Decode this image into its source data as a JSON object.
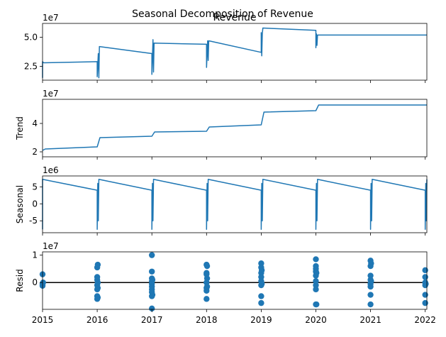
{
  "figure": {
    "suptitle": "Seasonal Decomposition of Revenue",
    "line_color": "#1f77b4",
    "x_ticks": [
      "2015",
      "2016",
      "2017",
      "2018",
      "2019",
      "2020",
      "2021",
      "2022"
    ]
  },
  "chart_data": [
    {
      "type": "line",
      "panel": "observed",
      "title": "Revenue",
      "ylabel": "",
      "offset_label": "1e7",
      "y_ticks": [
        "2.5",
        "5.0"
      ],
      "y_tick_values": [
        2.5,
        5.0
      ],
      "xlim": [
        2015,
        2022.03
      ],
      "ylim": [
        1.3,
        6.2
      ],
      "series": [
        {
          "points": [
            [
              2015.0,
              1.5
            ],
            [
              2015.0,
              2.9
            ],
            [
              2015.02,
              2.8
            ],
            [
              2016.0,
              2.9
            ],
            [
              2016.0,
              1.6
            ],
            [
              2016.02,
              3.6
            ],
            [
              2016.03,
              1.5
            ],
            [
              2016.04,
              4.2
            ],
            [
              2017.0,
              3.6
            ],
            [
              2017.0,
              1.8
            ],
            [
              2017.02,
              4.8
            ],
            [
              2017.03,
              2.0
            ],
            [
              2017.04,
              4.5
            ],
            [
              2018.0,
              4.4
            ],
            [
              2018.0,
              2.4
            ],
            [
              2018.02,
              4.7
            ],
            [
              2018.03,
              3.0
            ],
            [
              2018.04,
              4.7
            ],
            [
              2019.0,
              3.7
            ],
            [
              2019.0,
              5.4
            ],
            [
              2019.01,
              3.4
            ],
            [
              2019.02,
              5.3
            ],
            [
              2019.03,
              5.8
            ],
            [
              2020.0,
              5.6
            ],
            [
              2020.0,
              4.1
            ],
            [
              2020.01,
              5.3
            ],
            [
              2020.02,
              4.3
            ],
            [
              2020.03,
              5.2
            ],
            [
              2022.03,
              5.2
            ]
          ]
        }
      ]
    },
    {
      "type": "line",
      "panel": "trend",
      "title": "",
      "ylabel": "Trend",
      "offset_label": "1e7",
      "y_ticks": [
        "2",
        "4"
      ],
      "y_tick_values": [
        2,
        4
      ],
      "xlim": [
        2015,
        2022.03
      ],
      "ylim": [
        1.65,
        5.7
      ],
      "series": [
        {
          "points": [
            [
              2015.0,
              2.1
            ],
            [
              2015.05,
              2.2
            ],
            [
              2016.0,
              2.35
            ],
            [
              2016.05,
              3.0
            ],
            [
              2017.0,
              3.1
            ],
            [
              2017.05,
              3.4
            ],
            [
              2018.0,
              3.45
            ],
            [
              2018.05,
              3.75
            ],
            [
              2019.0,
              3.9
            ],
            [
              2019.05,
              4.8
            ],
            [
              2020.0,
              4.9
            ],
            [
              2020.05,
              5.3
            ],
            [
              2022.03,
              5.3
            ]
          ]
        }
      ]
    },
    {
      "type": "line",
      "panel": "seasonal",
      "title": "",
      "ylabel": "Seasonal",
      "offset_label": "1e6",
      "y_ticks": [
        "-5",
        "0",
        "5"
      ],
      "y_tick_values": [
        -5,
        0,
        5
      ],
      "xlim": [
        2015,
        2022.03
      ],
      "ylim": [
        -8.5,
        8.2
      ],
      "series": [
        {
          "points": [
            [
              2015.0,
              -7.5
            ],
            [
              2015.0,
              7.2
            ],
            [
              2016.0,
              4.0
            ],
            [
              2016.0,
              -7.5
            ],
            [
              2016.01,
              6.0
            ],
            [
              2016.02,
              -5.0
            ],
            [
              2016.03,
              7.2
            ],
            [
              2017.0,
              4.0
            ],
            [
              2017.0,
              -7.5
            ],
            [
              2017.01,
              6.0
            ],
            [
              2017.02,
              -5.0
            ],
            [
              2017.03,
              7.2
            ],
            [
              2018.0,
              4.0
            ],
            [
              2018.0,
              -7.5
            ],
            [
              2018.01,
              6.0
            ],
            [
              2018.02,
              -5.0
            ],
            [
              2018.03,
              7.2
            ],
            [
              2019.0,
              4.0
            ],
            [
              2019.0,
              -7.5
            ],
            [
              2019.01,
              6.0
            ],
            [
              2019.02,
              -5.0
            ],
            [
              2019.03,
              7.2
            ],
            [
              2020.0,
              4.0
            ],
            [
              2020.0,
              -7.5
            ],
            [
              2020.01,
              6.0
            ],
            [
              2020.02,
              -5.0
            ],
            [
              2020.03,
              7.2
            ],
            [
              2021.0,
              4.0
            ],
            [
              2021.0,
              -7.5
            ],
            [
              2021.01,
              6.0
            ],
            [
              2021.02,
              -5.0
            ],
            [
              2021.03,
              7.2
            ],
            [
              2022.0,
              4.0
            ],
            [
              2022.0,
              -7.5
            ],
            [
              2022.01,
              6.0
            ],
            [
              2022.02,
              -5.0
            ],
            [
              2022.03,
              7.2
            ]
          ]
        }
      ]
    },
    {
      "type": "scatter",
      "panel": "residual",
      "title": "",
      "ylabel": "Resid",
      "offset_label": "1e7",
      "y_ticks": [
        "0",
        "1"
      ],
      "y_tick_values": [
        0,
        1
      ],
      "xlim": [
        2015,
        2022.03
      ],
      "ylim": [
        -0.98,
        1.12
      ],
      "zero_line": 0,
      "series": [
        {
          "points": [
            [
              2015.0,
              0.3
            ],
            [
              2015.0,
              -0.05
            ],
            [
              2015.0,
              -0.1
            ],
            [
              2015.0,
              -0.12
            ],
            [
              2015.01,
              0.0
            ],
            [
              2016.0,
              0.55
            ],
            [
              2016.0,
              0.2
            ],
            [
              2016.0,
              0.1
            ],
            [
              2016.0,
              -0.1
            ],
            [
              2016.0,
              -0.25
            ],
            [
              2016.0,
              -0.5
            ],
            [
              2016.0,
              -0.6
            ],
            [
              2016.01,
              0.65
            ],
            [
              2016.01,
              0.0
            ],
            [
              2016.01,
              -0.2
            ],
            [
              2016.01,
              -0.55
            ],
            [
              2017.0,
              1.0
            ],
            [
              2017.0,
              0.4
            ],
            [
              2017.0,
              0.15
            ],
            [
              2017.0,
              0.05
            ],
            [
              2017.0,
              -0.05
            ],
            [
              2017.0,
              -0.15
            ],
            [
              2017.0,
              -0.25
            ],
            [
              2017.0,
              -0.35
            ],
            [
              2017.0,
              -0.5
            ],
            [
              2017.0,
              -0.95
            ],
            [
              2017.01,
              0.1
            ],
            [
              2017.01,
              -0.45
            ],
            [
              2018.0,
              0.65
            ],
            [
              2018.0,
              0.35
            ],
            [
              2018.0,
              0.3
            ],
            [
              2018.0,
              0.0
            ],
            [
              2018.0,
              -0.2
            ],
            [
              2018.0,
              -0.3
            ],
            [
              2018.0,
              -0.6
            ],
            [
              2018.01,
              0.6
            ],
            [
              2018.01,
              0.15
            ],
            [
              2018.01,
              -0.15
            ],
            [
              2019.0,
              0.7
            ],
            [
              2019.0,
              0.55
            ],
            [
              2019.0,
              0.35
            ],
            [
              2019.0,
              0.2
            ],
            [
              2019.0,
              0.05
            ],
            [
              2019.0,
              -0.1
            ],
            [
              2019.0,
              -0.5
            ],
            [
              2019.0,
              -0.75
            ],
            [
              2019.01,
              0.45
            ],
            [
              2019.01,
              -0.05
            ],
            [
              2020.0,
              0.85
            ],
            [
              2020.0,
              0.6
            ],
            [
              2020.0,
              0.5
            ],
            [
              2020.0,
              0.4
            ],
            [
              2020.0,
              0.25
            ],
            [
              2020.0,
              0.05
            ],
            [
              2020.0,
              -0.1
            ],
            [
              2020.0,
              -0.25
            ],
            [
              2020.0,
              -0.8
            ],
            [
              2020.01,
              0.35
            ],
            [
              2020.01,
              -0.8
            ],
            [
              2021.0,
              0.8
            ],
            [
              2021.0,
              0.6
            ],
            [
              2021.0,
              0.25
            ],
            [
              2021.0,
              0.1
            ],
            [
              2021.0,
              -0.05
            ],
            [
              2021.0,
              -0.15
            ],
            [
              2021.0,
              -0.45
            ],
            [
              2021.0,
              -0.8
            ],
            [
              2021.01,
              0.7
            ],
            [
              2021.01,
              0.05
            ],
            [
              2022.0,
              0.45
            ],
            [
              2022.0,
              0.2
            ],
            [
              2022.0,
              0.0
            ],
            [
              2022.0,
              -0.1
            ],
            [
              2022.0,
              -0.45
            ],
            [
              2022.0,
              -0.75
            ],
            [
              2022.01,
              -0.05
            ]
          ]
        }
      ]
    }
  ]
}
